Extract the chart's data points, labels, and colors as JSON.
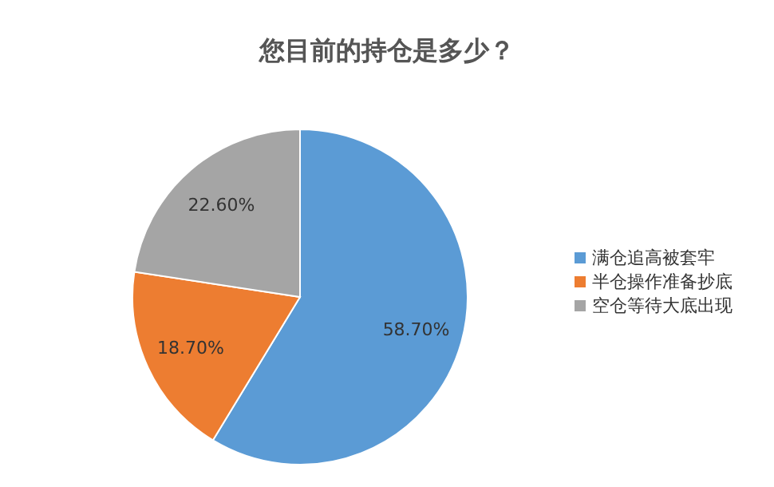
{
  "chart_data": {
    "type": "pie",
    "title": "您目前的持仓是多少？",
    "categories": [
      "满仓追高被套牢",
      "半仓操作准备抄底",
      "空仓等待大底出现"
    ],
    "values": [
      58.7,
      18.7,
      22.6
    ],
    "value_labels": [
      "58.70%",
      "18.70%",
      "22.60%"
    ],
    "colors": [
      "#5b9bd5",
      "#ed7d31",
      "#a5a5a5"
    ],
    "legend": "right"
  }
}
